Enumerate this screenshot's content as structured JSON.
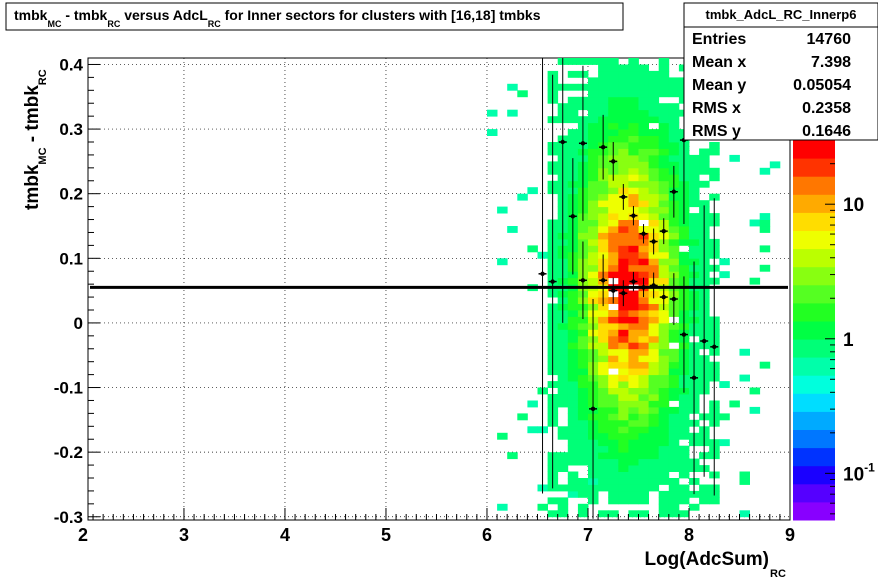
{
  "chart_data": {
    "type": "heatmap",
    "title": {
      "parts": [
        "tmbk",
        "MC",
        " - tmbk",
        "RC",
        " versus AdcL",
        "RC",
        " for Inner sectors for clusters with [16,18] tmbks"
      ]
    },
    "xlabel": {
      "main": "Log(AdcSum)",
      "sub": "RC"
    },
    "ylabel": {
      "main1": "tmbk",
      "sub1": "MC",
      "main2": " - tmbk",
      "sub2": "RC"
    },
    "xlim": [
      2.05,
      9.0
    ],
    "ylim": [
      -0.305,
      0.41
    ],
    "x_ticks": [
      "2",
      "3",
      "4",
      "5",
      "6",
      "7",
      "8",
      "9"
    ],
    "y_ticks": [
      "-0.3",
      "-0.2",
      "-0.1",
      "0",
      "0.1",
      "0.2",
      "0.3",
      "0.4"
    ],
    "grid": true,
    "colorbar": {
      "scale": "log",
      "labels": [
        {
          "text": "10",
          "exp": "",
          "value": 10
        },
        {
          "text": "1",
          "exp": "",
          "value": 1
        },
        {
          "text": "10",
          "exp": "-1",
          "value": 0.1
        }
      ],
      "palette": [
        "#8800ff",
        "#5500ff",
        "#1a00ff",
        "#0033ff",
        "#0077ff",
        "#00aaff",
        "#00ddff",
        "#00ffdd",
        "#00ffaa",
        "#00ff77",
        "#00ff44",
        "#22ff22",
        "#55ff22",
        "#88ff11",
        "#bbff00",
        "#eeff00",
        "#ffdd00",
        "#ffaa00",
        "#ff7700",
        "#ff3300",
        "#ff0000"
      ]
    },
    "stats": {
      "title": "tmbk_AdcL_RC_Innerp6",
      "rows": [
        {
          "label": "Entries",
          "value": "14760"
        },
        {
          "label": "Mean x",
          "value": "7.398"
        },
        {
          "label": "Mean y",
          "value": "0.05054"
        },
        {
          "label": "RMS x",
          "value": "0.2358"
        },
        {
          "label": "RMS y",
          "value": "0.1646"
        }
      ]
    },
    "fit_line_y": 0.055,
    "profile_points": [
      {
        "x": 6.55,
        "y": 0.076,
        "yerr": 0.34
      },
      {
        "x": 6.65,
        "y": 0.064,
        "yerr": 0.32
      },
      {
        "x": 6.75,
        "y": 0.28,
        "yerr": 0.28
      },
      {
        "x": 6.85,
        "y": 0.165,
        "yerr": 0.09
      },
      {
        "x": 6.95,
        "y": 0.278,
        "yerr": 0.12
      },
      {
        "x": 6.95,
        "y": 0.066,
        "yerr": 0.06
      },
      {
        "x": 7.05,
        "y": -0.133,
        "yerr": 0.17
      },
      {
        "x": 7.15,
        "y": 0.272,
        "yerr": 0.05
      },
      {
        "x": 7.15,
        "y": 0.066,
        "yerr": 0.04
      },
      {
        "x": 7.25,
        "y": 0.25,
        "yerr": 0.03
      },
      {
        "x": 7.25,
        "y": 0.05,
        "yerr": 0.02
      },
      {
        "x": 7.35,
        "y": 0.195,
        "yerr": 0.02
      },
      {
        "x": 7.35,
        "y": 0.046,
        "yerr": 0.02
      },
      {
        "x": 7.45,
        "y": 0.166,
        "yerr": 0.015
      },
      {
        "x": 7.45,
        "y": 0.064,
        "yerr": 0.015
      },
      {
        "x": 7.55,
        "y": 0.138,
        "yerr": 0.015
      },
      {
        "x": 7.55,
        "y": 0.055,
        "yerr": 0.015
      },
      {
        "x": 7.65,
        "y": 0.126,
        "yerr": 0.02
      },
      {
        "x": 7.65,
        "y": 0.058,
        "yerr": 0.02
      },
      {
        "x": 7.75,
        "y": 0.142,
        "yerr": 0.02
      },
      {
        "x": 7.75,
        "y": 0.04,
        "yerr": 0.02
      },
      {
        "x": 7.85,
        "y": 0.203,
        "yerr": 0.04
      },
      {
        "x": 7.85,
        "y": 0.037,
        "yerr": 0.04
      },
      {
        "x": 7.95,
        "y": 0.283,
        "yerr": 0.13
      },
      {
        "x": 7.95,
        "y": -0.018,
        "yerr": 0.09
      },
      {
        "x": 8.05,
        "y": -0.085,
        "yerr": 0.18
      },
      {
        "x": 8.15,
        "y": -0.028,
        "yerr": 0.21
      },
      {
        "x": 8.25,
        "y": -0.037,
        "yerr": 0.23
      }
    ]
  }
}
